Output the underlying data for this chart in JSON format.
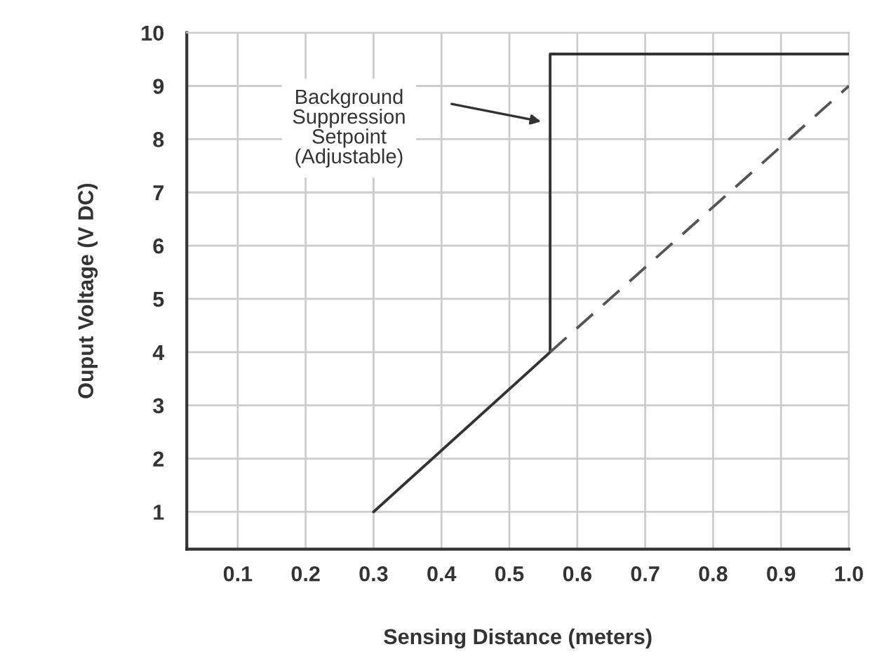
{
  "chart_data": {
    "type": "line",
    "xlabel": "Sensing Distance (meters)",
    "ylabel": "Ouput Voltage (V DC)",
    "xlim": [
      0.025,
      1.0
    ],
    "xticks": [
      0.1,
      0.2,
      0.3,
      0.4,
      0.5,
      0.6,
      0.7,
      0.8,
      0.9,
      {
        "value": 1.0,
        "label": "1.0"
      }
    ],
    "ylim": [
      0.3,
      10
    ],
    "yticks": [
      1,
      2,
      3,
      4,
      5,
      6,
      7,
      8,
      9,
      10
    ],
    "grid": true,
    "legend": false,
    "series": [
      {
        "color": "#333333",
        "line_style": "solid",
        "x": [
          0.3,
          0.56,
          0.56,
          1.0
        ],
        "values": [
          1,
          4,
          9.6,
          9.6
        ]
      },
      {
        "color": "#555555",
        "line_style": "dashed",
        "x": [
          0.56,
          1.0
        ],
        "values": [
          4,
          9
        ]
      }
    ],
    "annotations": [
      "Background\nSuppression\nSetpoint\n(Adjustable)"
    ]
  }
}
